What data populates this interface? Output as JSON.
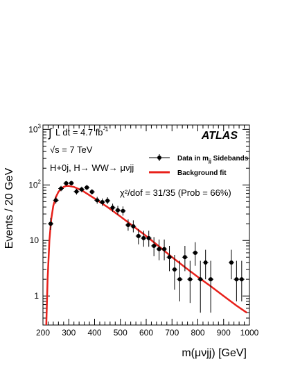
{
  "chart_data": {
    "type": "scatter",
    "title": "",
    "xlabel": "m(μνjj) [GeV]",
    "ylabel": "Events / 20 GeV",
    "xlim": [
      200,
      1000
    ],
    "ylim": [
      0.3,
      1200
    ],
    "yscale": "log",
    "grid": false,
    "legend_position": "top-right",
    "x_tick_labels": [
      "200",
      "300",
      "400",
      "500",
      "600",
      "700",
      "800",
      "900",
      "1000"
    ],
    "y_tick_labels": [
      {
        "base": "1",
        "exp": ""
      },
      {
        "base": "10",
        "exp": ""
      },
      {
        "base": "10",
        "exp": "2"
      },
      {
        "base": "10",
        "exp": "3"
      }
    ],
    "brand": "ATLAS",
    "annotations": {
      "lumi_prefix": "∫",
      "lumi": "L dt = 4.7 fb",
      "lumi_exp": "-1",
      "energy": "√s = 7 TeV",
      "channel": "H+0j, H→ WW→ μνjj",
      "chi2": "χ²/dof = 31/35 (Prob = 66%)"
    },
    "series": [
      {
        "name": "Data in m_jj Sidebands",
        "legend_main": "Data in m",
        "legend_sub": "jj",
        "legend_tail": " Sidebands",
        "color": "#000000",
        "points": [
          {
            "x": 230,
            "y": 20,
            "lo": 15.5,
            "hi": 25.5
          },
          {
            "x": 250,
            "y": 53,
            "lo": 46,
            "hi": 61
          },
          {
            "x": 270,
            "y": 86,
            "lo": 77,
            "hi": 96
          },
          {
            "x": 290,
            "y": 107,
            "lo": 97,
            "hi": 118
          },
          {
            "x": 310,
            "y": 108,
            "lo": 98,
            "hi": 119
          },
          {
            "x": 330,
            "y": 76,
            "lo": 67,
            "hi": 85
          },
          {
            "x": 350,
            "y": 83,
            "lo": 74,
            "hi": 93
          },
          {
            "x": 370,
            "y": 90,
            "lo": 81,
            "hi": 100
          },
          {
            "x": 390,
            "y": 75,
            "lo": 67,
            "hi": 84
          },
          {
            "x": 410,
            "y": 53,
            "lo": 46,
            "hi": 61
          },
          {
            "x": 430,
            "y": 49,
            "lo": 42,
            "hi": 57
          },
          {
            "x": 450,
            "y": 52,
            "lo": 45,
            "hi": 60
          },
          {
            "x": 470,
            "y": 39,
            "lo": 33,
            "hi": 46
          },
          {
            "x": 490,
            "y": 35,
            "lo": 29,
            "hi": 42
          },
          {
            "x": 510,
            "y": 34,
            "lo": 28,
            "hi": 41
          },
          {
            "x": 530,
            "y": 19,
            "lo": 15,
            "hi": 24
          },
          {
            "x": 550,
            "y": 18,
            "lo": 14,
            "hi": 23
          },
          {
            "x": 570,
            "y": 12,
            "lo": 8.5,
            "hi": 16
          },
          {
            "x": 590,
            "y": 11,
            "lo": 7.7,
            "hi": 15
          },
          {
            "x": 610,
            "y": 11,
            "lo": 7.7,
            "hi": 15
          },
          {
            "x": 630,
            "y": 8,
            "lo": 5.2,
            "hi": 11.5
          },
          {
            "x": 650,
            "y": 7,
            "lo": 4.4,
            "hi": 10.4
          },
          {
            "x": 670,
            "y": 7,
            "lo": 4.4,
            "hi": 10.4
          },
          {
            "x": 690,
            "y": 5,
            "lo": 2.8,
            "hi": 8.0
          },
          {
            "x": 710,
            "y": 3,
            "lo": 1.3,
            "hi": 5.5
          },
          {
            "x": 730,
            "y": 2,
            "lo": 0.8,
            "hi": 4.3
          },
          {
            "x": 750,
            "y": 5,
            "lo": 2.8,
            "hi": 8.0
          },
          {
            "x": 770,
            "y": 2,
            "lo": 0.75,
            "hi": 4.3
          },
          {
            "x": 790,
            "y": 6,
            "lo": 3.5,
            "hi": 9.3
          },
          {
            "x": 810,
            "y": 2,
            "lo": 0.5,
            "hi": 4.3
          },
          {
            "x": 830,
            "y": 4,
            "lo": 2.0,
            "hi": 6.8
          },
          {
            "x": 850,
            "y": 2,
            "lo": 0.5,
            "hi": 4.3
          },
          {
            "x": 930,
            "y": 4,
            "lo": 2.0,
            "hi": 6.8
          },
          {
            "x": 950,
            "y": 2,
            "lo": 0.8,
            "hi": 4.3
          },
          {
            "x": 970,
            "y": 2,
            "lo": 0.8,
            "hi": 4.3
          }
        ]
      },
      {
        "name": "Background fit",
        "color": "#e8201a",
        "curve": [
          {
            "x": 213,
            "y": 0.3
          },
          {
            "x": 218,
            "y": 2.0
          },
          {
            "x": 225,
            "y": 10
          },
          {
            "x": 232,
            "y": 24
          },
          {
            "x": 240,
            "y": 42
          },
          {
            "x": 250,
            "y": 60
          },
          {
            "x": 260,
            "y": 75
          },
          {
            "x": 270,
            "y": 85
          },
          {
            "x": 280,
            "y": 92
          },
          {
            "x": 290,
            "y": 96
          },
          {
            "x": 300,
            "y": 96
          },
          {
            "x": 320,
            "y": 92
          },
          {
            "x": 350,
            "y": 80
          },
          {
            "x": 400,
            "y": 57
          },
          {
            "x": 450,
            "y": 40
          },
          {
            "x": 500,
            "y": 27
          },
          {
            "x": 550,
            "y": 18
          },
          {
            "x": 600,
            "y": 12
          },
          {
            "x": 650,
            "y": 7.8
          },
          {
            "x": 700,
            "y": 5.0
          },
          {
            "x": 750,
            "y": 3.3
          },
          {
            "x": 800,
            "y": 2.2
          },
          {
            "x": 850,
            "y": 1.5
          },
          {
            "x": 900,
            "y": 1.0
          },
          {
            "x": 950,
            "y": 0.67
          },
          {
            "x": 990,
            "y": 0.5
          }
        ]
      }
    ]
  }
}
